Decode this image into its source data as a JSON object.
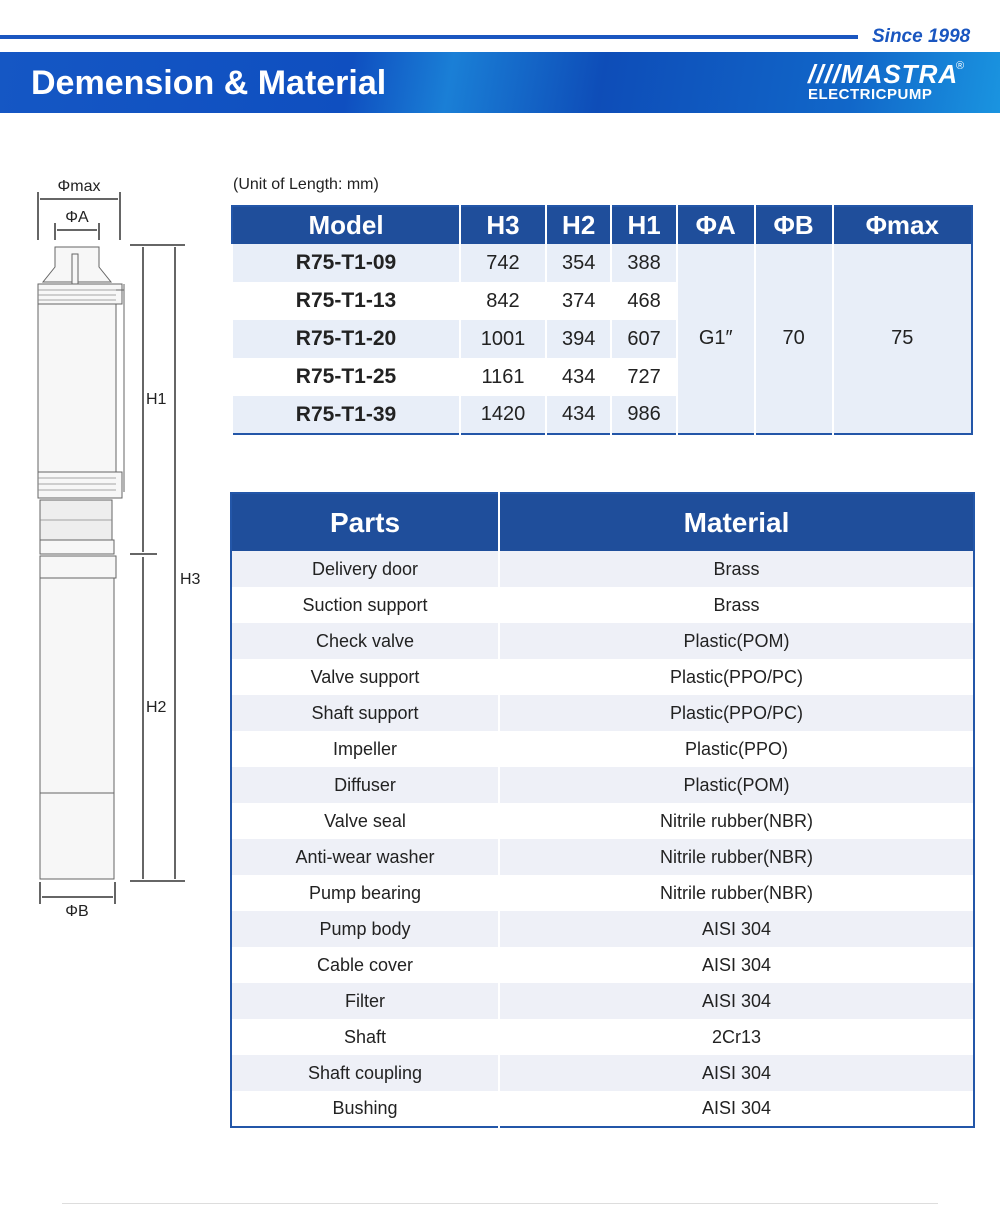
{
  "header": {
    "since": "Since 1998",
    "title": "Demension & Material",
    "logo_mark": "MASTRA",
    "logo_sub": "ELECTRICPUMP",
    "logo_reg": "®",
    "colors": {
      "brand": "#1f4e9b",
      "accent": "#1a56c0"
    }
  },
  "drawing": {
    "labels": {
      "phimax": "Φmax",
      "phia": "ΦA",
      "h1": "H1",
      "h2": "H2",
      "h3": "H3",
      "phib": "ΦB"
    }
  },
  "dimensions": {
    "unit_note": "(Unit of Length: mm)",
    "headers": [
      "Model",
      "H3",
      "H2",
      "H1",
      "ΦA",
      "ΦB",
      "Φmax"
    ],
    "rows": [
      [
        "R75-T1-09",
        "742",
        "354",
        "388"
      ],
      [
        "R75-T1-13",
        "842",
        "374",
        "468"
      ],
      [
        "R75-T1-20",
        "1001",
        "394",
        "607"
      ],
      [
        "R75-T1-25",
        "1161",
        "434",
        "727"
      ],
      [
        "R75-T1-39",
        "1420",
        "434",
        "986"
      ]
    ],
    "shared": {
      "phia": "G1″",
      "phib": "70",
      "phimax": "75"
    }
  },
  "materials": {
    "headers": [
      "Parts",
      "Material"
    ],
    "rows": [
      [
        "Delivery door",
        "Brass"
      ],
      [
        "Suction support",
        "Brass"
      ],
      [
        "Check valve",
        "Plastic(POM)"
      ],
      [
        "Valve support",
        "Plastic(PPO/PC)"
      ],
      [
        "Shaft support",
        "Plastic(PPO/PC)"
      ],
      [
        "Impeller",
        "Plastic(PPO)"
      ],
      [
        "Diffuser",
        "Plastic(POM)"
      ],
      [
        "Valve seal",
        "Nitrile rubber(NBR)"
      ],
      [
        "Anti-wear washer",
        "Nitrile rubber(NBR)"
      ],
      [
        "Pump bearing",
        "Nitrile rubber(NBR)"
      ],
      [
        "Pump body",
        "AISI 304"
      ],
      [
        "Cable cover",
        "AISI 304"
      ],
      [
        "Filter",
        "AISI 304"
      ],
      [
        "Shaft",
        "2Cr13"
      ],
      [
        "Shaft coupling",
        "AISI 304"
      ],
      [
        "Bushing",
        "AISI 304"
      ]
    ]
  }
}
